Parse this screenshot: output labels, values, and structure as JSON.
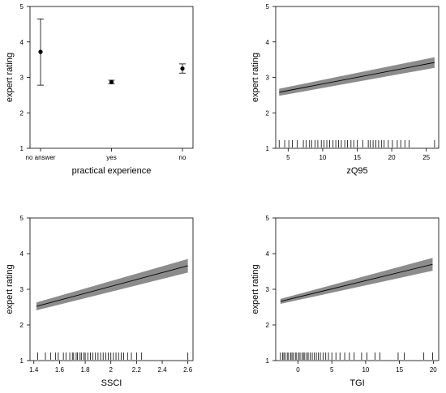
{
  "chart_data": [
    {
      "type": "scatter",
      "panel": "top-left",
      "xlabel": "practical experience",
      "ylabel": "expert rating",
      "ylim": [
        1,
        5
      ],
      "yticks": [
        1,
        2,
        3,
        4,
        5
      ],
      "categories": [
        "no answer",
        "yes",
        "no"
      ],
      "estimates": [
        {
          "category": "no answer",
          "value": 3.72,
          "lower": 2.78,
          "upper": 4.65
        },
        {
          "category": "yes",
          "value": 2.87,
          "lower": 2.82,
          "upper": 2.92
        },
        {
          "category": "no",
          "value": 3.25,
          "lower": 3.12,
          "upper": 3.38
        }
      ]
    },
    {
      "type": "line",
      "panel": "top-right",
      "xlabel": "zQ95",
      "ylabel": "expert rating",
      "xlim": [
        3.2,
        26.8
      ],
      "ylim": [
        1,
        5
      ],
      "xticks": [
        5,
        10,
        15,
        20,
        25
      ],
      "yticks": [
        1,
        2,
        3,
        4,
        5
      ],
      "fit": {
        "x": [
          3.7,
          26.2
        ],
        "y": [
          2.58,
          3.42
        ],
        "lower": [
          2.48,
          3.27
        ],
        "upper": [
          2.68,
          3.57
        ]
      },
      "rug": [
        3.7,
        4.5,
        5.1,
        5.6,
        6.3,
        7.2,
        7.6,
        8.1,
        8.4,
        8.9,
        9.3,
        9.8,
        10.2,
        10.6,
        11.0,
        11.5,
        11.9,
        12.3,
        12.7,
        13.2,
        13.6,
        14.1,
        14.5,
        15.0,
        15.8,
        16.6,
        16.9,
        17.3,
        17.7,
        18.1,
        18.5,
        18.9,
        19.5,
        20.1,
        20.8,
        21.3,
        21.9,
        22.5,
        26.2
      ]
    },
    {
      "type": "line",
      "panel": "bottom-left",
      "xlabel": "SSCI",
      "ylabel": "expert rating",
      "xlim": [
        1.37,
        2.64
      ],
      "ylim": [
        1,
        5
      ],
      "xticks": [
        1.4,
        1.6,
        1.8,
        2.0,
        2.2,
        2.4,
        2.6
      ],
      "yticks": [
        1,
        2,
        3,
        4,
        5
      ],
      "fit": {
        "x": [
          1.42,
          2.6
        ],
        "y": [
          2.52,
          3.66
        ],
        "lower": [
          2.41,
          3.47
        ],
        "upper": [
          2.63,
          3.85
        ]
      },
      "rug": [
        1.43,
        1.49,
        1.53,
        1.57,
        1.59,
        1.63,
        1.65,
        1.68,
        1.7,
        1.71,
        1.73,
        1.74,
        1.76,
        1.77,
        1.79,
        1.8,
        1.82,
        1.84,
        1.86,
        1.88,
        1.9,
        1.92,
        1.94,
        1.96,
        1.98,
        2.0,
        2.02,
        2.04,
        2.06,
        2.08,
        2.1,
        2.13,
        2.16,
        2.2,
        2.24,
        2.6
      ]
    },
    {
      "type": "line",
      "panel": "bottom-right",
      "xlabel": "TGI",
      "ylabel": "expert rating",
      "xlim": [
        -3.3,
        20.8
      ],
      "ylim": [
        1,
        5
      ],
      "xticks": [
        0,
        5,
        10,
        15,
        20
      ],
      "yticks": [
        1,
        2,
        3,
        4,
        5
      ],
      "fit": {
        "x": [
          -2.6,
          19.9
        ],
        "y": [
          2.66,
          3.7
        ],
        "lower": [
          2.59,
          3.52
        ],
        "upper": [
          2.73,
          3.88
        ]
      },
      "rug": [
        -2.6,
        -2.3,
        -2.1,
        -1.9,
        -1.6,
        -1.4,
        -1.1,
        -0.9,
        -0.7,
        -0.4,
        -0.2,
        0.1,
        0.3,
        0.6,
        0.8,
        1.0,
        1.3,
        1.5,
        1.8,
        2.1,
        2.4,
        2.7,
        3.0,
        3.3,
        3.7,
        4.1,
        4.5,
        5.0,
        5.6,
        6.2,
        6.9,
        7.6,
        8.3,
        9.4,
        10.2,
        11.4,
        12.1,
        14.8,
        15.7,
        18.6,
        19.9
      ]
    }
  ]
}
